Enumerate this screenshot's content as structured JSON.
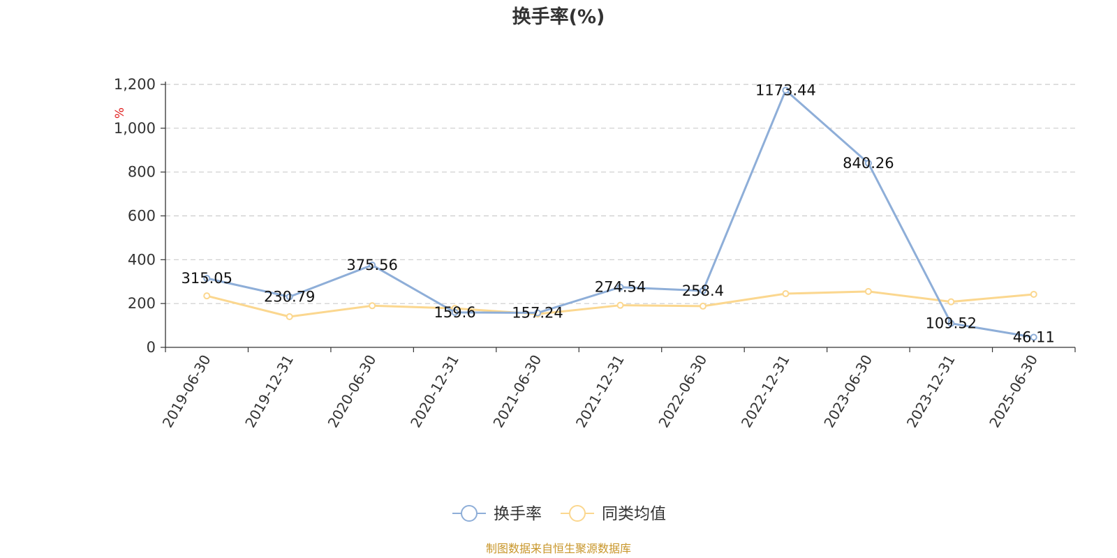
{
  "chart_data": {
    "type": "line",
    "title": "换手率(%)",
    "ylabel": "%",
    "ylim": [
      0,
      1200
    ],
    "yticks": [
      0,
      200,
      400,
      600,
      800,
      1000,
      1200
    ],
    "ytick_labels": [
      "0",
      "200",
      "400",
      "600",
      "800",
      "1,000",
      "1,200"
    ],
    "grid": true,
    "legend_position": "bottom",
    "categories": [
      "2019-06-30",
      "2019-12-31",
      "2020-06-30",
      "2020-12-31",
      "2021-06-30",
      "2021-12-31",
      "2022-06-30",
      "2022-12-31",
      "2023-06-30",
      "2023-12-31",
      "2025-06-30"
    ],
    "series": [
      {
        "name": "换手率",
        "color": "#8eaed8",
        "values": [
          315.05,
          230.79,
          375.56,
          159.6,
          157.24,
          274.54,
          258.4,
          1173.44,
          840.26,
          109.52,
          46.11
        ],
        "labels": [
          "315.05",
          "230.79",
          "375.56",
          "159.6",
          "157.24",
          "274.54",
          "258.4",
          "1173.44",
          "840.26",
          "109.52",
          "46.11"
        ]
      },
      {
        "name": "同类均值",
        "color": "#fbd78f",
        "values": [
          235,
          140,
          190,
          178,
          152,
          192,
          188,
          245,
          255,
          208,
          242
        ]
      }
    ],
    "source": "制图数据来自恒生聚源数据库"
  }
}
